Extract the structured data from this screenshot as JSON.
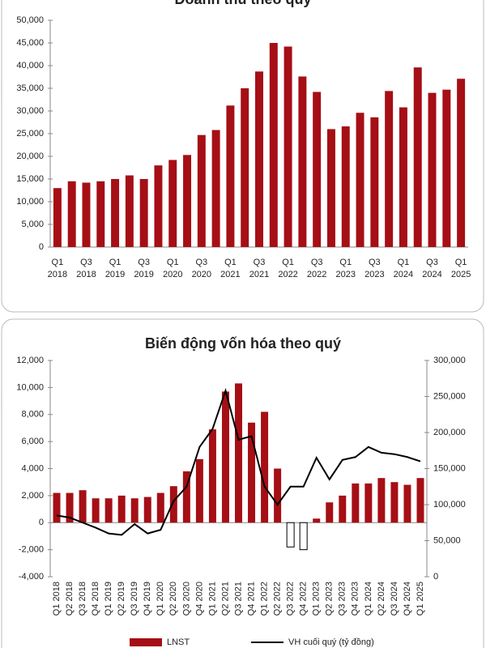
{
  "chart_data": [
    {
      "type": "bar",
      "title": "Doanh thu theo quý",
      "categories": [
        "Q1 2018",
        null,
        "Q3 2018",
        null,
        "Q1 2019",
        null,
        "Q3 2019",
        null,
        "Q1 2020",
        null,
        "Q3 2020",
        null,
        "Q1 2021",
        null,
        "Q3 2021",
        null,
        "Q1 2022",
        null,
        "Q3 2022",
        null,
        "Q1 2023",
        null,
        "Q3 2023",
        null,
        "Q1 2024",
        null,
        "Q3 2024",
        null,
        "Q1 2025"
      ],
      "values": [
        13000,
        14500,
        14200,
        14500,
        15000,
        15800,
        15000,
        18000,
        19200,
        20300,
        24700,
        25800,
        31200,
        35000,
        38700,
        45000,
        44200,
        37600,
        34200,
        26000,
        26600,
        29600,
        28600,
        34400,
        30800,
        39600,
        34000,
        34700,
        37100
      ],
      "color": "#a50f15",
      "ylim": [
        0,
        50000
      ],
      "yticks": [
        0,
        {
          "value": 5000,
          "label": "5,000"
        },
        {
          "value": 10000,
          "label": "10,000"
        },
        {
          "value": 15000,
          "label": "15,000"
        },
        {
          "value": 20000,
          "label": "20,000"
        },
        {
          "value": 25000,
          "label": "25,000"
        },
        {
          "value": 30000,
          "label": "30,000"
        },
        {
          "value": 35000,
          "label": "35,000"
        },
        {
          "value": 40000,
          "label": "40,000"
        },
        {
          "value": 45000,
          "label": "45,000"
        },
        {
          "value": 50000,
          "label": "50,000"
        }
      ],
      "grid": false
    },
    {
      "type": "combo",
      "title": "Biến động vốn hóa theo quý",
      "categories": [
        "Q1 2018",
        "Q2 2018",
        "Q3 2018",
        "Q4 2018",
        "Q1 2019",
        "Q2 2019",
        "Q3 2019",
        "Q4 2019",
        "Q1 2020",
        "Q2 2020",
        "Q3 2020",
        "Q4 2020",
        "Q1 2021",
        "Q2 2021",
        "Q3 2021",
        "Q4 2021",
        "Q1 2022",
        "Q2 2022",
        "Q3 2022",
        "Q4 2022",
        "Q1 2023",
        "Q2 2023",
        "Q3 2023",
        "Q4 2023",
        "Q1 2024",
        "Q2 2024",
        "Q3 2024",
        "Q4 2024",
        "Q1 2025"
      ],
      "series": [
        {
          "name": "LNST",
          "color": "#a50f15",
          "negative_color": "#ffffff",
          "values": [
            2200,
            2200,
            2400,
            1800,
            1800,
            2000,
            1800,
            1900,
            2200,
            2700,
            3800,
            4700,
            6900,
            9700,
            10300,
            7400,
            8200,
            4000,
            -1800,
            -2000,
            300,
            1500,
            2000,
            2900,
            2900,
            3300,
            3000,
            2800,
            3300
          ]
        },
        {
          "name": "VH cuối quý (tỷ đồng)",
          "color": "#000000",
          "axis": "y2",
          "values": [
            85000,
            82000,
            75000,
            68000,
            60000,
            58000,
            73000,
            60000,
            65000,
            105000,
            125000,
            180000,
            205000,
            258000,
            190000,
            195000,
            125000,
            100000,
            125000,
            125000,
            165000,
            135000,
            162000,
            166000,
            180000,
            172000,
            170000,
            166000,
            160000
          ]
        }
      ],
      "ylim": [
        -4000,
        12000
      ],
      "yticks": [
        {
          "value": -4000,
          "label": "-4,000"
        },
        {
          "value": -2000,
          "label": "-2,000"
        },
        0,
        {
          "value": 2000,
          "label": "2,000"
        },
        {
          "value": 4000,
          "label": "4,000"
        },
        {
          "value": 6000,
          "label": "6,000"
        },
        {
          "value": 8000,
          "label": "8,000"
        },
        {
          "value": 10000,
          "label": "10,000"
        },
        {
          "value": 12000,
          "label": "12,000"
        }
      ],
      "y2lim": [
        0,
        300000
      ],
      "y2ticks": [
        0,
        {
          "value": 50000,
          "label": "50,000"
        },
        {
          "value": 100000,
          "label": "100,000"
        },
        {
          "value": 150000,
          "label": "150,000"
        },
        {
          "value": 200000,
          "label": "200,000"
        },
        {
          "value": 250000,
          "label": "250,000"
        },
        {
          "value": 300000,
          "label": "300,000"
        }
      ],
      "grid": false
    }
  ]
}
